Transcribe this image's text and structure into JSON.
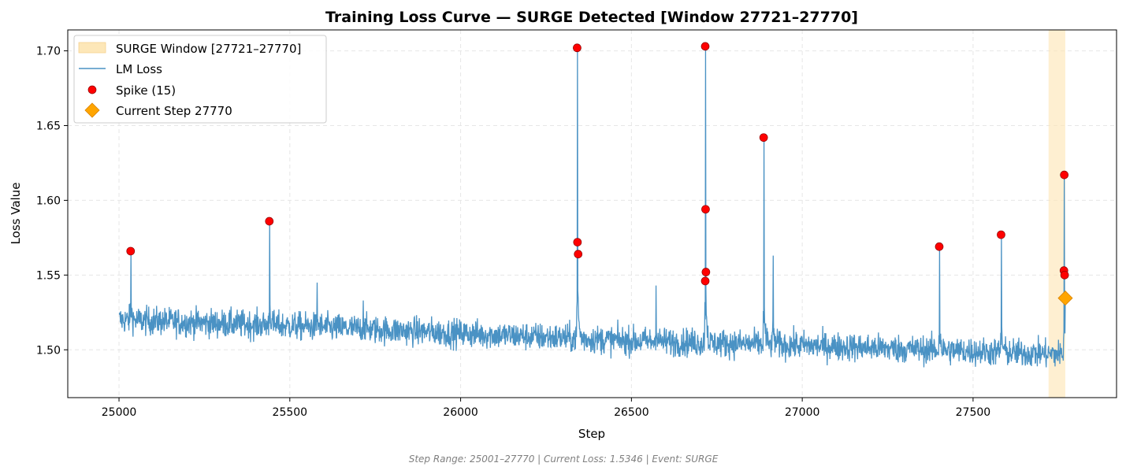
{
  "chart_data": {
    "type": "line",
    "title": "Training Loss Curve — SURGE Detected [Window 27721–27770]",
    "xlabel": "Step",
    "ylabel": "Loss Value",
    "footer": "Step Range: 25001–27770 | Current Loss: 1.5346 | Event: SURGE",
    "xlim": [
      24850,
      27920
    ],
    "ylim": [
      1.468,
      1.714
    ],
    "xticks": [
      25000,
      25500,
      26000,
      26500,
      27000,
      27500
    ],
    "xtick_labels": [
      "25000",
      "25500",
      "26000",
      "26500",
      "27000",
      "27500"
    ],
    "yticks": [
      1.5,
      1.55,
      1.6,
      1.65,
      1.7
    ],
    "ytick_labels": [
      "1.50",
      "1.55",
      "1.60",
      "1.65",
      "1.70"
    ],
    "grid": true,
    "legend_position": "top-left",
    "surge_window": {
      "name": "SURGE Window [27721–27770]",
      "x_start": 27721,
      "x_end": 27770,
      "color": "#fde7b8"
    },
    "loss_series": {
      "name": "LM Loss",
      "color": "#4a92c4",
      "x_start": 25001,
      "x_end": 27770,
      "trend": [
        {
          "x": 25001,
          "y": 1.52
        },
        {
          "x": 25500,
          "y": 1.516
        },
        {
          "x": 26000,
          "y": 1.511
        },
        {
          "x": 26500,
          "y": 1.506
        },
        {
          "x": 27000,
          "y": 1.503
        },
        {
          "x": 27500,
          "y": 1.499
        },
        {
          "x": 27750,
          "y": 1.497
        }
      ],
      "bumps": [
        {
          "x": 25035,
          "y": 1.566
        },
        {
          "x": 25441,
          "y": 1.586
        },
        {
          "x": 25580,
          "y": 1.545
        },
        {
          "x": 25715,
          "y": 1.533
        },
        {
          "x": 26342,
          "y": 1.702
        },
        {
          "x": 26572,
          "y": 1.543
        },
        {
          "x": 26717,
          "y": 1.703
        },
        {
          "x": 26888,
          "y": 1.642
        },
        {
          "x": 26915,
          "y": 1.563
        },
        {
          "x": 27402,
          "y": 1.569
        },
        {
          "x": 27583,
          "y": 1.577
        },
        {
          "x": 27767,
          "y": 1.617
        }
      ]
    },
    "spikes": {
      "name": "Spike (15)",
      "color": "#ff0000",
      "points": [
        {
          "x": 25034,
          "y": 1.566
        },
        {
          "x": 25440,
          "y": 1.586
        },
        {
          "x": 26341,
          "y": 1.702
        },
        {
          "x": 26342,
          "y": 1.572
        },
        {
          "x": 26344,
          "y": 1.564
        },
        {
          "x": 26716,
          "y": 1.703
        },
        {
          "x": 26717,
          "y": 1.594
        },
        {
          "x": 26718,
          "y": 1.552
        },
        {
          "x": 26716,
          "y": 1.546
        },
        {
          "x": 26887,
          "y": 1.642
        },
        {
          "x": 27401,
          "y": 1.569
        },
        {
          "x": 27582,
          "y": 1.577
        },
        {
          "x": 27767,
          "y": 1.617
        },
        {
          "x": 27766,
          "y": 1.553
        },
        {
          "x": 27768,
          "y": 1.55
        }
      ]
    },
    "current_step": {
      "name": "Current Step 27770",
      "x": 27770,
      "y": 1.5346,
      "color": "#ffa500"
    }
  }
}
